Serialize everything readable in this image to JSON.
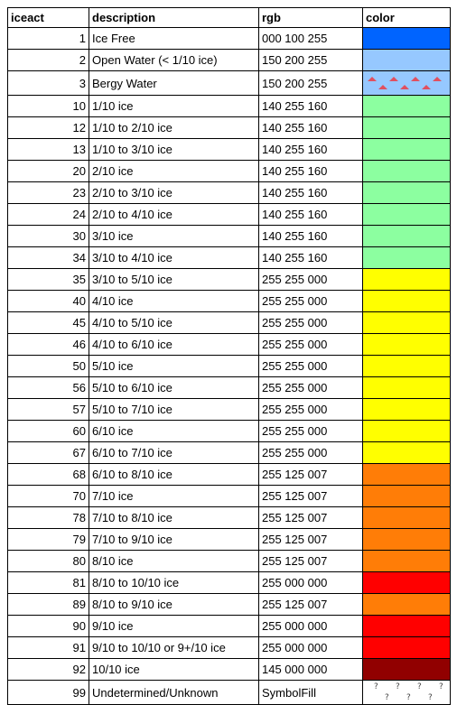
{
  "headers": {
    "iceact": "iceact",
    "description": "description",
    "rgb": "rgb",
    "color": "color"
  },
  "rows": [
    {
      "iceact": "1",
      "description": "Ice Free",
      "rgb": "000 100 255",
      "color": "#0064ff"
    },
    {
      "iceact": "2",
      "description": "Open Water (< 1/10 ice)",
      "rgb": "150 200 255",
      "color": "#96c8ff"
    },
    {
      "iceact": "3",
      "description": "Bergy Water",
      "rgb": "150 200 255",
      "color": "#96c8ff",
      "pattern": "berg-triangle-icon"
    },
    {
      "iceact": "10",
      "description": "1/10 ice",
      "rgb": "140 255 160",
      "color": "#8cffa0"
    },
    {
      "iceact": "12",
      "description": "1/10 to 2/10 ice",
      "rgb": "140 255 160",
      "color": "#8cffa0"
    },
    {
      "iceact": "13",
      "description": "1/10 to 3/10 ice",
      "rgb": "140 255 160",
      "color": "#8cffa0"
    },
    {
      "iceact": "20",
      "description": "2/10 ice",
      "rgb": "140 255 160",
      "color": "#8cffa0"
    },
    {
      "iceact": "23",
      "description": "2/10 to 3/10 ice",
      "rgb": "140 255 160",
      "color": "#8cffa0"
    },
    {
      "iceact": "24",
      "description": "2/10 to 4/10 ice",
      "rgb": "140 255 160",
      "color": "#8cffa0"
    },
    {
      "iceact": "30",
      "description": "3/10 ice",
      "rgb": "140 255 160",
      "color": "#8cffa0"
    },
    {
      "iceact": "34",
      "description": "3/10 to 4/10 ice",
      "rgb": "140 255 160",
      "color": "#8cffa0"
    },
    {
      "iceact": "35",
      "description": "3/10 to 5/10 ice",
      "rgb": "255 255 000",
      "color": "#ffff00"
    },
    {
      "iceact": "40",
      "description": "4/10 ice",
      "rgb": "255 255 000",
      "color": "#ffff00"
    },
    {
      "iceact": "45",
      "description": "4/10 to 5/10 ice",
      "rgb": "255 255 000",
      "color": "#ffff00"
    },
    {
      "iceact": "46",
      "description": "4/10 to 6/10 ice",
      "rgb": "255 255 000",
      "color": "#ffff00"
    },
    {
      "iceact": "50",
      "description": "5/10 ice",
      "rgb": "255 255 000",
      "color": "#ffff00"
    },
    {
      "iceact": "56",
      "description": "5/10 to 6/10 ice",
      "rgb": "255 255 000",
      "color": "#ffff00"
    },
    {
      "iceact": "57",
      "description": "5/10 to 7/10 ice",
      "rgb": "255 255 000",
      "color": "#ffff00"
    },
    {
      "iceact": "60",
      "description": "6/10 ice",
      "rgb": "255 255 000",
      "color": "#ffff00"
    },
    {
      "iceact": "67",
      "description": "6/10 to 7/10 ice",
      "rgb": "255 255 000",
      "color": "#ffff00"
    },
    {
      "iceact": "68",
      "description": "6/10 to 8/10 ice",
      "rgb": "255 125 007",
      "color": "#ff7d07"
    },
    {
      "iceact": "70",
      "description": "7/10 ice",
      "rgb": "255 125 007",
      "color": "#ff7d07"
    },
    {
      "iceact": "78",
      "description": "7/10 to 8/10 ice",
      "rgb": "255 125 007",
      "color": "#ff7d07"
    },
    {
      "iceact": "79",
      "description": "7/10 to 9/10 ice",
      "rgb": "255 125 007",
      "color": "#ff7d07"
    },
    {
      "iceact": "80",
      "description": "8/10 ice",
      "rgb": "255 125 007",
      "color": "#ff7d07"
    },
    {
      "iceact": "81",
      "description": "8/10 to 10/10 ice",
      "rgb": "255 000 000",
      "color": "#ff0000"
    },
    {
      "iceact": "89",
      "description": "8/10 to 9/10 ice",
      "rgb": "255 125 007",
      "color": "#ff7d07"
    },
    {
      "iceact": "90",
      "description": "9/10 ice",
      "rgb": "255 000 000",
      "color": "#ff0000"
    },
    {
      "iceact": "91",
      "description": "9/10 to 10/10 or 9+/10 ice",
      "rgb": "255 000 000",
      "color": "#ff0000"
    },
    {
      "iceact": "92",
      "description": "10/10 ice",
      "rgb": "145 000 000",
      "color": "#910000"
    },
    {
      "iceact": "99",
      "description": "Undetermined/Unknown",
      "rgb": "SymbolFill",
      "color": "#ffffff",
      "pattern": "question-mark-icon"
    }
  ]
}
